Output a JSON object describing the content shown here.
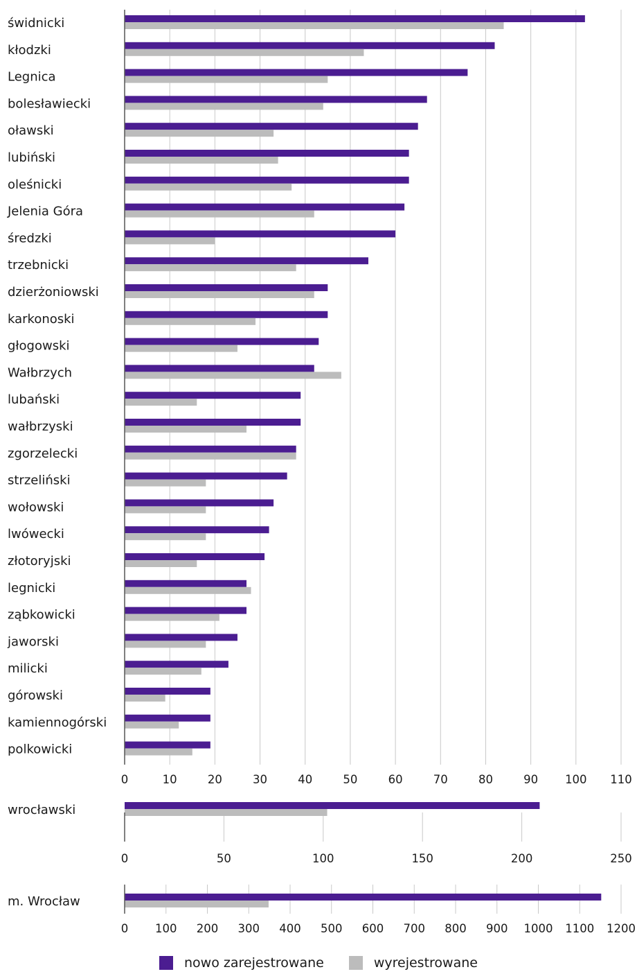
{
  "colors": {
    "new": "#4b1d91",
    "removed": "#bcbcbc",
    "grid": "#c8c8c8",
    "axis": "#555555"
  },
  "legend": {
    "new_label": "nowo zarejestrowane",
    "removed_label": "wyrejestrowane"
  },
  "chart_data": [
    {
      "type": "bar",
      "orientation": "horizontal",
      "categories": [
        "świdnicki",
        "kłodzki",
        "Legnica",
        "bolesławiecki",
        "oławski",
        "lubiński",
        "oleśnicki",
        "Jelenia Góra",
        "średzki",
        "trzebnicki",
        "dzierżoniowski",
        "karkonoski",
        "głogowski",
        "Wałbrzych",
        "lubański",
        "wałbrzyski",
        "zgorzelecki",
        "strzeliński",
        "wołowski",
        "lwówecki",
        "złotoryjski",
        "legnicki",
        "ząbkowicki",
        "jaworski",
        "milicki",
        "górowski",
        "kamiennogórski",
        "polkowicki"
      ],
      "series": [
        {
          "name": "nowo zarejestrowane",
          "values": [
            102,
            82,
            76,
            67,
            65,
            63,
            63,
            62,
            60,
            54,
            45,
            45,
            43,
            42,
            39,
            39,
            38,
            36,
            33,
            32,
            31,
            27,
            27,
            25,
            23,
            19,
            19,
            19
          ]
        },
        {
          "name": "wyrejestrowane",
          "values": [
            84,
            53,
            45,
            44,
            33,
            34,
            37,
            42,
            20,
            38,
            42,
            29,
            25,
            48,
            16,
            27,
            38,
            18,
            18,
            18,
            16,
            28,
            21,
            18,
            17,
            9,
            12,
            15
          ]
        }
      ],
      "xlim": [
        0,
        110
      ],
      "ticks": [
        0,
        10,
        20,
        30,
        40,
        50,
        60,
        70,
        80,
        90,
        100,
        110
      ],
      "grid": true
    },
    {
      "type": "bar",
      "orientation": "horizontal",
      "categories": [
        "wrocławski"
      ],
      "series": [
        {
          "name": "nowo zarejestrowane",
          "values": [
            209
          ]
        },
        {
          "name": "wyrejestrowane",
          "values": [
            102
          ]
        }
      ],
      "xlim": [
        0,
        250
      ],
      "ticks": [
        0,
        50,
        100,
        150,
        200,
        250
      ],
      "grid": true
    },
    {
      "type": "bar",
      "orientation": "horizontal",
      "categories": [
        "m. Wrocław"
      ],
      "series": [
        {
          "name": "nowo zarejestrowane",
          "values": [
            1152
          ]
        },
        {
          "name": "wyrejestrowane",
          "values": [
            348
          ]
        }
      ],
      "xlim": [
        0,
        1200
      ],
      "ticks": [
        0,
        100,
        200,
        300,
        400,
        500,
        600,
        700,
        800,
        900,
        1000,
        1100,
        1200
      ],
      "grid": true
    }
  ]
}
